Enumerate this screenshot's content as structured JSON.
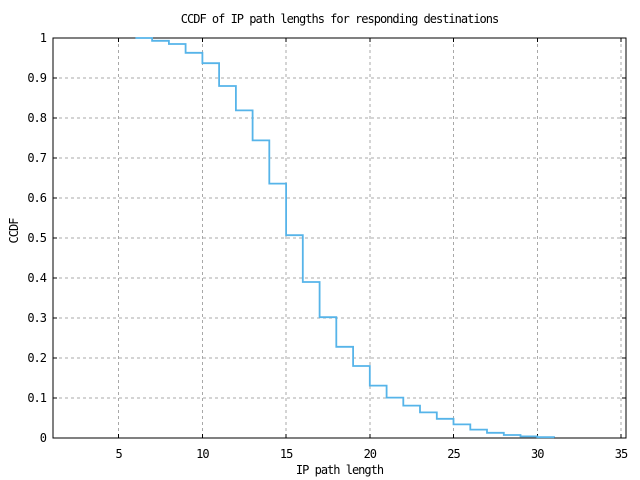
{
  "chart_data": {
    "type": "line",
    "style": "steps-post",
    "title": "CCDF of IP path lengths for responding destinations",
    "xlabel": "IP path length",
    "ylabel": "CCDF",
    "x": [
      6,
      7,
      8,
      9,
      10,
      11,
      12,
      13,
      14,
      15,
      16,
      17,
      18,
      19,
      20,
      21,
      22,
      23,
      24,
      25,
      26,
      27,
      28,
      29,
      30,
      31
    ],
    "y": [
      1.0,
      0.993,
      0.985,
      0.963,
      0.937,
      0.88,
      0.819,
      0.744,
      0.636,
      0.507,
      0.39,
      0.302,
      0.228,
      0.18,
      0.131,
      0.101,
      0.081,
      0.064,
      0.048,
      0.034,
      0.021,
      0.013,
      0.0075,
      0.004,
      0.002,
      0.0005
    ],
    "xlim": [
      1.08,
      35.3
    ],
    "ylim": [
      0,
      1
    ],
    "xticks": {
      "values": [
        5,
        10,
        15,
        20,
        25,
        30,
        35
      ],
      "labels": [
        "5",
        "10",
        "15",
        "20",
        "25",
        "30",
        "35"
      ]
    },
    "yticks": {
      "values": [
        0,
        0.1,
        0.2,
        0.3,
        0.4,
        0.5,
        0.6,
        0.7,
        0.8,
        0.9,
        1
      ],
      "labels": [
        "0",
        "0.1",
        "0.2",
        "0.3",
        "0.4",
        "0.5",
        "0.6",
        "0.7",
        "0.8",
        "0.9",
        "1"
      ]
    },
    "grid": true,
    "legend": "none",
    "colors": {
      "line": "#56B4E9",
      "grid": "#a8a8a8",
      "border": "#000000",
      "background": "#ffffff",
      "text": "#000000"
    }
  }
}
